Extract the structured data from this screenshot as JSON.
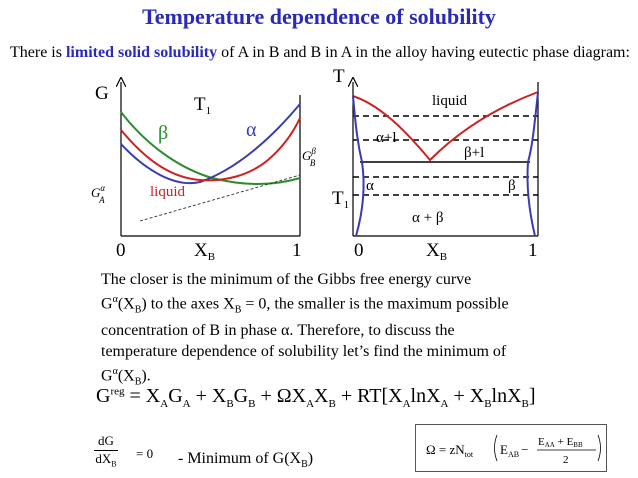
{
  "title": "Temperature dependence of solubility",
  "intro": {
    "pre": "There is ",
    "highlight": "limited solid solubility",
    "post": " of A in B and B in A in the alloy having eutectic phase diagram:"
  },
  "g_diagram": {
    "y_axis_label": "G",
    "temperature_label": "T",
    "temperature_sub": "1",
    "beta_label": "β",
    "alpha_label": "α",
    "liquid_label": "liquid",
    "gb_label": "G",
    "gb_sup": "β",
    "gb_sub": "B",
    "ga_label": "G",
    "ga_sup": "α",
    "ga_sub": "A",
    "x_zero": "0",
    "x_label": "X",
    "x_sub": "B",
    "x_one": "1",
    "colors": {
      "beta": "#2e8b2e",
      "alpha": "#3b3bb0",
      "liquid": "#cc2222"
    }
  },
  "phase_diagram": {
    "y_axis_label": "T",
    "liquid_label": "liquid",
    "alpha_liquid": "α+l",
    "beta_liquid": "β+l",
    "alpha": "α",
    "beta": "β",
    "alpha_beta": "α + β",
    "t1_label": "T",
    "t1_sub": "1",
    "x_zero": "0",
    "x_label": "X",
    "x_sub": "B",
    "x_one": "1",
    "colors": {
      "liquidus": "#cc2222",
      "solvus": "#3b3bb0"
    }
  },
  "paragraph": {
    "l1": "The closer is the minimum of the Gibbs free energy curve",
    "l2a": "G",
    "l2b": "α",
    "l2c": "(X",
    "l2d": "B",
    "l2e": ") to the axes X",
    "l2f": "B",
    "l2g": " = 0, the smaller is the maximum possible",
    "l3": "concentration of B in phase α.   Therefore, to discuss the",
    "l4": "temperature dependence of solubility let’s find the minimum of",
    "l5a": "G",
    "l5b": "α",
    "l5c": "(X",
    "l5d": "B",
    "l5e": ")."
  },
  "equation": {
    "g": "G",
    "reg": "reg",
    "eq1": " = X",
    "a1": "A",
    "g2": "G",
    "a2": "A",
    "plus1": " + X",
    "b1": "B",
    "g3": "G",
    "b2": "B",
    "plus2": " + ΩX",
    "a3": "A",
    "x4": "X",
    "b3": "B",
    "plus3": " + RT[X",
    "a4": "A",
    "ln1": "lnX",
    "a5": "A",
    "plus4": " + X",
    "b4": "B",
    "ln2": "lnX",
    "b5": "B",
    "close": "]"
  },
  "derivative": {
    "num": "dG",
    "den": "dX",
    "den_sub": "B",
    "eq_zero": "= 0",
    "label": "- Minimum of G(X",
    "label_sub": "B",
    "label_end": ")"
  },
  "omega": {
    "lhs": "Ω = zN",
    "tot": "tot",
    "e_ab": "E",
    "ab": "AB",
    "minus": "−",
    "num": "E",
    "aa": "AA",
    "plus": " + E",
    "bb": "BB",
    "den": "2"
  }
}
